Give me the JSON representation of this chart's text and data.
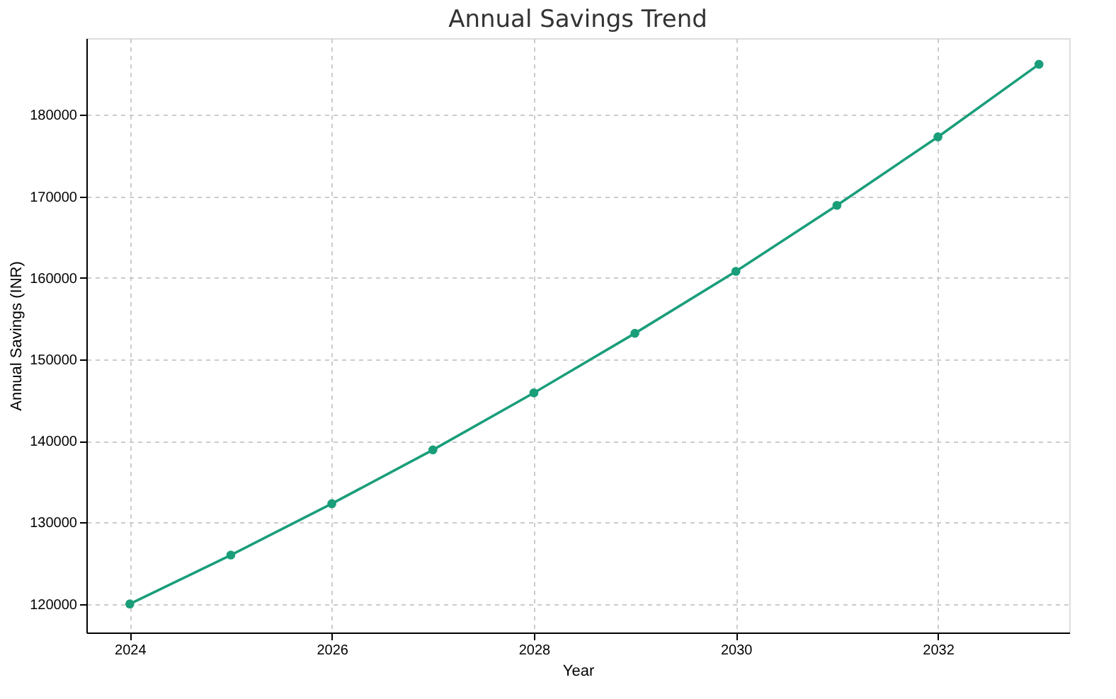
{
  "chart_data": {
    "type": "line",
    "title": "Annual Savings Trend",
    "xlabel": "Year",
    "ylabel": "Annual Savings (INR)",
    "x": [
      2024,
      2025,
      2026,
      2027,
      2028,
      2029,
      2030,
      2031,
      2032,
      2033
    ],
    "series": [
      {
        "color": "#1a9e7a",
        "values": [
          120000,
          126000,
          132300,
          138900,
          145900,
          153200,
          160800,
          168900,
          177300,
          186200
        ]
      }
    ],
    "xlim": [
      2023.57,
      2033.3
    ],
    "xticks": [
      2024,
      2026,
      2028,
      2030,
      2032
    ],
    "ylim": [
      116500,
      189400
    ],
    "yticks": [
      120000,
      130000,
      140000,
      150000,
      160000,
      170000,
      180000
    ],
    "grid": true,
    "marker": "circle",
    "line_style": "solid"
  }
}
